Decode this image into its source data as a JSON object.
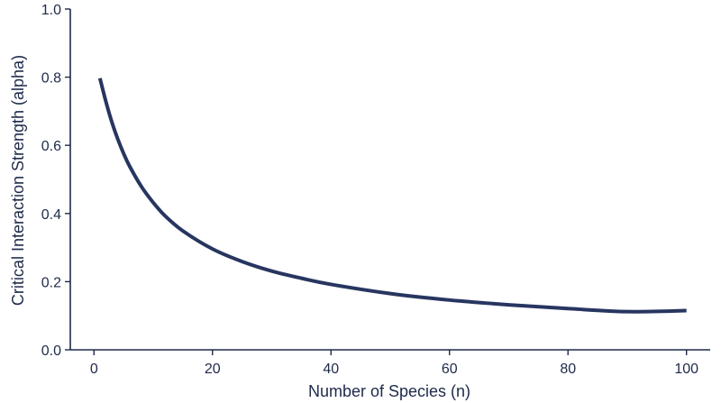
{
  "chart_data": {
    "type": "line",
    "title": "",
    "xlabel": "Number of Species (n)",
    "ylabel": "Critical Interaction Strength (alpha)",
    "xlim": [
      -4,
      104
    ],
    "ylim": [
      0,
      1.0
    ],
    "x_ticks": [
      0,
      20,
      40,
      60,
      80,
      100
    ],
    "y_ticks": [
      0.0,
      0.2,
      0.4,
      0.6,
      0.8,
      1.0
    ],
    "x_tick_labels": [
      "0",
      "20",
      "40",
      "60",
      "80",
      "100"
    ],
    "y_tick_labels": [
      "0.0",
      "0.2",
      "0.4",
      "0.6",
      "0.8",
      "1.0"
    ],
    "grid": false,
    "legend": "none",
    "colors": {
      "line": "#273660",
      "axis": "#1e2a4a"
    },
    "series": [
      {
        "x": [
          1,
          2,
          3,
          4,
          5,
          6,
          8,
          10,
          12,
          15,
          20,
          25,
          30,
          35,
          40,
          50,
          60,
          70,
          80,
          90,
          100
        ],
        "y": [
          0.797,
          0.729,
          0.669,
          0.619,
          0.576,
          0.539,
          0.479,
          0.432,
          0.393,
          0.349,
          0.296,
          0.259,
          0.231,
          0.21,
          0.192,
          0.165,
          0.146,
          0.132,
          0.121,
          0.112,
          0.115
        ]
      }
    ]
  }
}
